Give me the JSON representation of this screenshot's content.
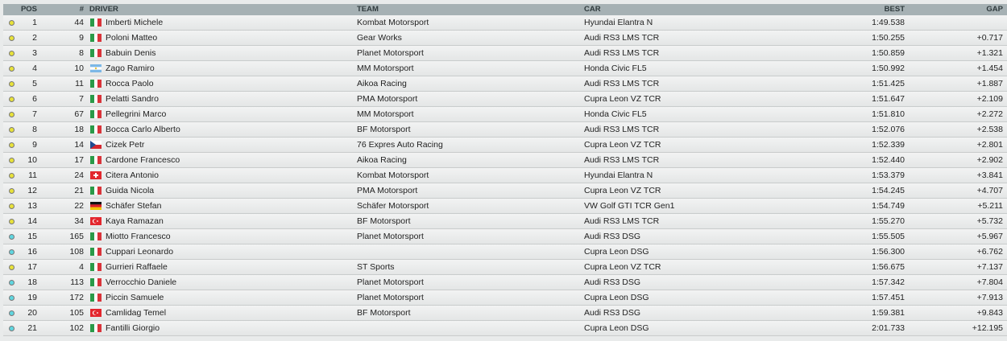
{
  "headers": {
    "pos": "POS",
    "num": "#",
    "driver": "DRIVER",
    "team": "TEAM",
    "car": "CAR",
    "best": "BEST",
    "gap": "GAP"
  },
  "colors": {
    "yellow": "#e8e23a",
    "cyan": "#5fd6e0"
  },
  "rows": [
    {
      "status": "yellow",
      "pos": "1",
      "num": "44",
      "flag": "it",
      "driver": "Imberti Michele",
      "team": "Kombat Motorsport",
      "car": "Hyundai Elantra N",
      "best": "1:49.538",
      "gap": ""
    },
    {
      "status": "yellow",
      "pos": "2",
      "num": "9",
      "flag": "it",
      "driver": "Poloni Matteo",
      "team": "Gear Works",
      "car": "Audi RS3 LMS TCR",
      "best": "1:50.255",
      "gap": "+0.717"
    },
    {
      "status": "yellow",
      "pos": "3",
      "num": "8",
      "flag": "it",
      "driver": "Babuin Denis",
      "team": "Planet Motorsport",
      "car": "Audi RS3 LMS TCR",
      "best": "1:50.859",
      "gap": "+1.321"
    },
    {
      "status": "yellow",
      "pos": "4",
      "num": "10",
      "flag": "ar",
      "driver": "Zago Ramiro",
      "team": "MM Motorsport",
      "car": "Honda Civic FL5",
      "best": "1:50.992",
      "gap": "+1.454"
    },
    {
      "status": "yellow",
      "pos": "5",
      "num": "11",
      "flag": "it",
      "driver": "Rocca Paolo",
      "team": "Aikoa Racing",
      "car": "Audi RS3 LMS TCR",
      "best": "1:51.425",
      "gap": "+1.887"
    },
    {
      "status": "yellow",
      "pos": "6",
      "num": "7",
      "flag": "it",
      "driver": "Pelatti Sandro",
      "team": "PMA Motorsport",
      "car": "Cupra Leon VZ TCR",
      "best": "1:51.647",
      "gap": "+2.109"
    },
    {
      "status": "yellow",
      "pos": "7",
      "num": "67",
      "flag": "it",
      "driver": "Pellegrini Marco",
      "team": "MM Motorsport",
      "car": "Honda Civic FL5",
      "best": "1:51.810",
      "gap": "+2.272"
    },
    {
      "status": "yellow",
      "pos": "8",
      "num": "18",
      "flag": "it",
      "driver": "Bocca Carlo Alberto",
      "team": "BF Motorsport",
      "car": "Audi RS3 LMS TCR",
      "best": "1:52.076",
      "gap": "+2.538"
    },
    {
      "status": "yellow",
      "pos": "9",
      "num": "14",
      "flag": "cz",
      "driver": "Cizek Petr",
      "team": "76 Expres Auto Racing",
      "car": "Cupra Leon VZ TCR",
      "best": "1:52.339",
      "gap": "+2.801"
    },
    {
      "status": "yellow",
      "pos": "10",
      "num": "17",
      "flag": "it",
      "driver": "Cardone Francesco",
      "team": "Aikoa Racing",
      "car": "Audi RS3 LMS TCR",
      "best": "1:52.440",
      "gap": "+2.902"
    },
    {
      "status": "yellow",
      "pos": "11",
      "num": "24",
      "flag": "ch",
      "driver": "Citera Antonio",
      "team": "Kombat Motorsport",
      "car": "Hyundai Elantra N",
      "best": "1:53.379",
      "gap": "+3.841"
    },
    {
      "status": "yellow",
      "pos": "12",
      "num": "21",
      "flag": "it",
      "driver": "Guida Nicola",
      "team": "PMA Motorsport",
      "car": "Cupra Leon VZ TCR",
      "best": "1:54.245",
      "gap": "+4.707"
    },
    {
      "status": "yellow",
      "pos": "13",
      "num": "22",
      "flag": "de",
      "driver": "Schäfer Stefan",
      "team": "Schäfer Motorsport",
      "car": "VW Golf GTI TCR Gen1",
      "best": "1:54.749",
      "gap": "+5.211"
    },
    {
      "status": "yellow",
      "pos": "14",
      "num": "34",
      "flag": "tr",
      "driver": "Kaya Ramazan",
      "team": "BF Motorsport",
      "car": "Audi RS3 LMS TCR",
      "best": "1:55.270",
      "gap": "+5.732"
    },
    {
      "status": "cyan",
      "pos": "15",
      "num": "165",
      "flag": "it",
      "driver": "Miotto Francesco",
      "team": "Planet Motorsport",
      "car": "Audi RS3 DSG",
      "best": "1:55.505",
      "gap": "+5.967"
    },
    {
      "status": "cyan",
      "pos": "16",
      "num": "108",
      "flag": "it",
      "driver": "Cuppari Leonardo",
      "team": "",
      "car": "Cupra Leon DSG",
      "best": "1:56.300",
      "gap": "+6.762"
    },
    {
      "status": "yellow",
      "pos": "17",
      "num": "4",
      "flag": "it",
      "driver": "Gurrieri Raffaele",
      "team": "ST Sports",
      "car": "Cupra Leon VZ TCR",
      "best": "1:56.675",
      "gap": "+7.137"
    },
    {
      "status": "cyan",
      "pos": "18",
      "num": "113",
      "flag": "it",
      "driver": "Verrocchio Daniele",
      "team": "Planet Motorsport",
      "car": "Audi RS3 DSG",
      "best": "1:57.342",
      "gap": "+7.804"
    },
    {
      "status": "cyan",
      "pos": "19",
      "num": "172",
      "flag": "it",
      "driver": "Piccin Samuele",
      "team": "Planet Motorsport",
      "car": "Cupra Leon DSG",
      "best": "1:57.451",
      "gap": "+7.913"
    },
    {
      "status": "cyan",
      "pos": "20",
      "num": "105",
      "flag": "tr",
      "driver": "Camlidag Temel",
      "team": "BF Motorsport",
      "car": "Audi RS3 DSG",
      "best": "1:59.381",
      "gap": "+9.843"
    },
    {
      "status": "cyan",
      "pos": "21",
      "num": "102",
      "flag": "it",
      "driver": "Fantilli Giorgio",
      "team": "",
      "car": "Cupra Leon DSG",
      "best": "2:01.733",
      "gap": "+12.195"
    }
  ]
}
